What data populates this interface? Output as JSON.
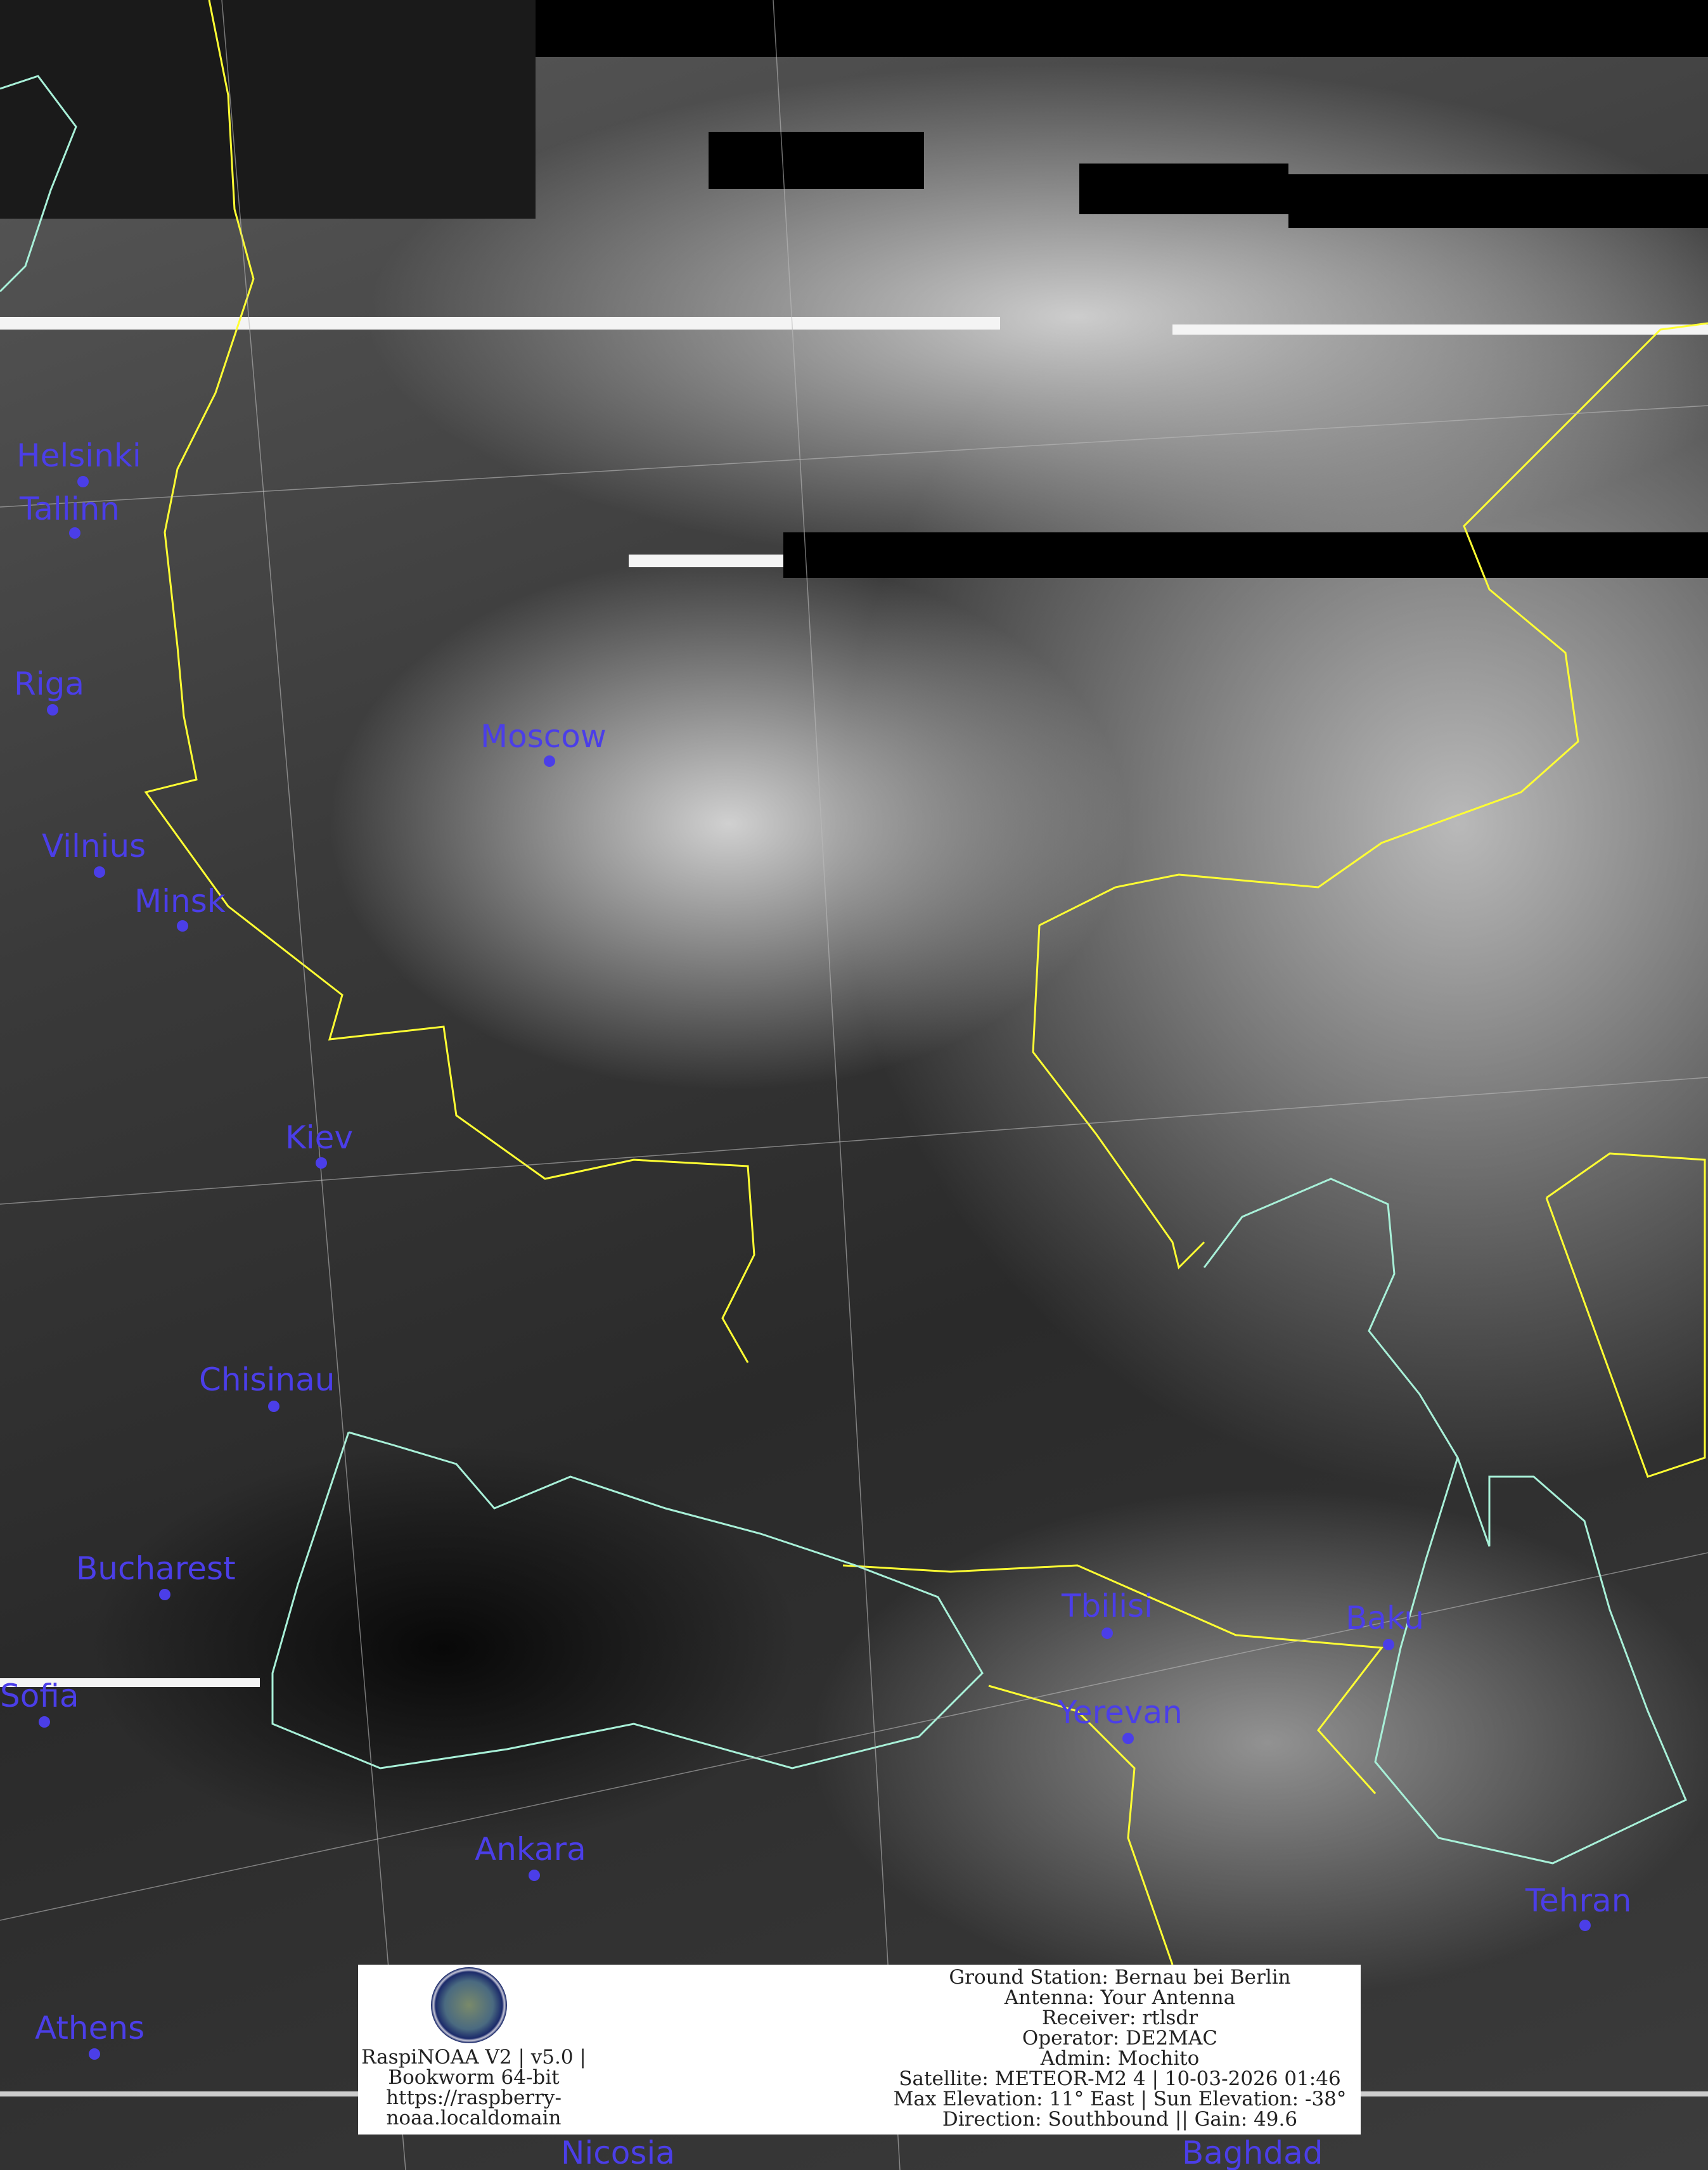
{
  "cities": [
    {
      "name": "Helsinki"
    },
    {
      "name": "Tallinn"
    },
    {
      "name": "Riga"
    },
    {
      "name": "Moscow"
    },
    {
      "name": "Vilnius"
    },
    {
      "name": "Minsk"
    },
    {
      "name": "Kiev"
    },
    {
      "name": "Chisinau"
    },
    {
      "name": "Bucharest"
    },
    {
      "name": "Sofia"
    },
    {
      "name": "Ankara"
    },
    {
      "name": "Athens"
    },
    {
      "name": "Tbilisi"
    },
    {
      "name": "Yerevan"
    },
    {
      "name": "Baku"
    },
    {
      "name": "Tehran"
    },
    {
      "name": "Nicosia"
    },
    {
      "name": "Baghdad"
    }
  ],
  "colors": {
    "city": "#4b3ee8",
    "borders": "#ffff33",
    "coast": "#a8f0d8"
  },
  "info": {
    "software": [
      "RaspiNOAA V2 | v5.0 |",
      "Bookworm 64-bit",
      "https://raspberry-",
      "noaa.localdomain"
    ],
    "ground_station": "Ground Station: Bernau bei Berlin",
    "antenna": "Antenna: Your Antenna",
    "receiver": "Receiver: rtlsdr",
    "operator": "Operator: DE2MAC",
    "admin": "Admin: Mochito",
    "satellite": "Satellite: METEOR-M2 4 | 10-03-2026 01:46",
    "elevation": "Max Elevation: 11° East | Sun Elevation: -38°",
    "direction": "Direction: Southbound || Gain: 49.6"
  }
}
